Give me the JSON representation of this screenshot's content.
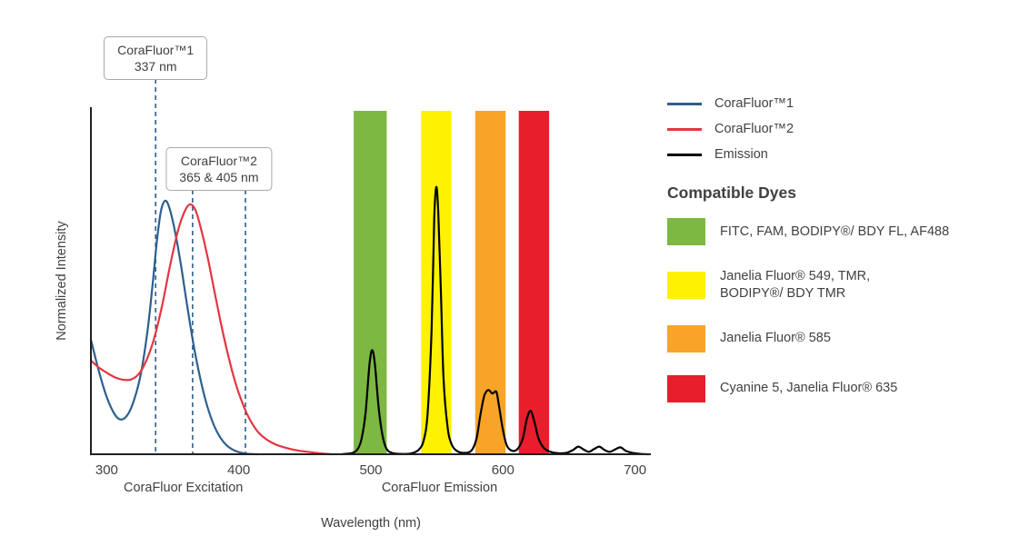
{
  "colors": {
    "corafluor1": "#2d5f8d",
    "corafluor2": "#e4363f",
    "emission": "#000000",
    "dashed_line": "#2d5f8d",
    "axis": "#231f20",
    "text": "#414042",
    "green_band": "#7cb842",
    "yellow_band": "#fef200",
    "orange_band": "#f7a428",
    "red_band": "#e81e2d"
  },
  "chart_data": {
    "type": "line",
    "title": "",
    "xlabel": "Wavelength (nm)",
    "ylabel": "Normalized Intensity",
    "x_range": [
      288,
      712
    ],
    "y_range": [
      0,
      1
    ],
    "grid": false,
    "x_ticks": [
      300,
      400,
      500,
      600,
      700
    ],
    "section_labels": [
      {
        "text": "CoraFluor Excitation",
        "anchor_nm": 358
      },
      {
        "text": "CoraFluor Emission",
        "anchor_nm": 552
      }
    ],
    "dashed_markers_nm": [
      337,
      365,
      405
    ],
    "annotations": [
      {
        "line1": "CoraFluor™1",
        "line2": "337 nm",
        "at_nm": 337
      },
      {
        "line1": "CoraFluor™2",
        "line2": "365 & 405 nm",
        "at_nm": 385
      }
    ],
    "bands": [
      {
        "id": "green",
        "from_nm": 487,
        "to_nm": 512,
        "color": "#7cb842"
      },
      {
        "id": "yellow",
        "from_nm": 538,
        "to_nm": 561,
        "color": "#fef200"
      },
      {
        "id": "orange",
        "from_nm": 579,
        "to_nm": 602,
        "color": "#f7a428"
      },
      {
        "id": "red",
        "from_nm": 612,
        "to_nm": 635,
        "color": "#e81e2d"
      }
    ],
    "series": [
      {
        "name": "CoraFluor™1",
        "kind": "excitation",
        "color": "#2d5f8d",
        "points": [
          [
            288,
            0.33
          ],
          [
            294,
            0.24
          ],
          [
            300,
            0.165
          ],
          [
            306,
            0.115
          ],
          [
            311,
            0.1
          ],
          [
            316,
            0.115
          ],
          [
            321,
            0.16
          ],
          [
            326,
            0.235
          ],
          [
            331,
            0.36
          ],
          [
            335,
            0.5
          ],
          [
            338,
            0.615
          ],
          [
            341,
            0.7
          ],
          [
            344,
            0.73
          ],
          [
            347,
            0.715
          ],
          [
            351,
            0.655
          ],
          [
            356,
            0.55
          ],
          [
            361,
            0.425
          ],
          [
            366,
            0.31
          ],
          [
            371,
            0.215
          ],
          [
            376,
            0.14
          ],
          [
            381,
            0.085
          ],
          [
            386,
            0.048
          ],
          [
            391,
            0.025
          ],
          [
            396,
            0.012
          ],
          [
            401,
            0.005
          ],
          [
            407,
            0.001
          ],
          [
            414,
            0
          ]
        ]
      },
      {
        "name": "CoraFluor™2",
        "kind": "excitation",
        "color": "#e4363f",
        "points": [
          [
            288,
            0.27
          ],
          [
            294,
            0.25
          ],
          [
            300,
            0.235
          ],
          [
            306,
            0.222
          ],
          [
            312,
            0.215
          ],
          [
            318,
            0.215
          ],
          [
            324,
            0.23
          ],
          [
            330,
            0.27
          ],
          [
            336,
            0.335
          ],
          [
            342,
            0.43
          ],
          [
            348,
            0.545
          ],
          [
            354,
            0.645
          ],
          [
            359,
            0.7
          ],
          [
            363,
            0.72
          ],
          [
            367,
            0.705
          ],
          [
            371,
            0.655
          ],
          [
            376,
            0.575
          ],
          [
            381,
            0.48
          ],
          [
            386,
            0.385
          ],
          [
            391,
            0.3
          ],
          [
            396,
            0.225
          ],
          [
            401,
            0.165
          ],
          [
            406,
            0.118
          ],
          [
            411,
            0.083
          ],
          [
            416,
            0.058
          ],
          [
            422,
            0.04
          ],
          [
            428,
            0.028
          ],
          [
            435,
            0.019
          ],
          [
            443,
            0.012
          ],
          [
            452,
            0.007
          ],
          [
            461,
            0.003
          ],
          [
            470,
            0
          ]
        ]
      },
      {
        "name": "Emission",
        "kind": "emission",
        "color": "#000000",
        "points": [
          [
            478,
            0
          ],
          [
            486,
            0.004
          ],
          [
            490,
            0.015
          ],
          [
            493,
            0.045
          ],
          [
            496,
            0.12
          ],
          [
            499,
            0.26
          ],
          [
            501,
            0.3
          ],
          [
            503,
            0.26
          ],
          [
            506,
            0.13
          ],
          [
            509,
            0.05
          ],
          [
            512,
            0.015
          ],
          [
            516,
            0.004
          ],
          [
            522,
            0.001
          ],
          [
            530,
            0.002
          ],
          [
            536,
            0.012
          ],
          [
            540,
            0.04
          ],
          [
            543,
            0.12
          ],
          [
            546,
            0.36
          ],
          [
            548,
            0.68
          ],
          [
            549.5,
            0.77
          ],
          [
            551,
            0.7
          ],
          [
            553,
            0.47
          ],
          [
            555,
            0.22
          ],
          [
            558,
            0.08
          ],
          [
            561,
            0.03
          ],
          [
            565,
            0.01
          ],
          [
            570,
            0.004
          ],
          [
            576,
            0.01
          ],
          [
            580,
            0.045
          ],
          [
            583,
            0.115
          ],
          [
            586,
            0.17
          ],
          [
            589,
            0.185
          ],
          [
            592,
            0.175
          ],
          [
            595,
            0.18
          ],
          [
            597,
            0.14
          ],
          [
            600,
            0.07
          ],
          [
            603,
            0.025
          ],
          [
            607,
            0.01
          ],
          [
            611,
            0.015
          ],
          [
            615,
            0.045
          ],
          [
            618,
            0.1
          ],
          [
            621,
            0.125
          ],
          [
            624,
            0.09
          ],
          [
            627,
            0.045
          ],
          [
            631,
            0.018
          ],
          [
            636,
            0.007
          ],
          [
            642,
            0.003
          ],
          [
            648,
            0.004
          ],
          [
            653,
            0.012
          ],
          [
            657,
            0.022
          ],
          [
            661,
            0.014
          ],
          [
            665,
            0.007
          ],
          [
            669,
            0.015
          ],
          [
            673,
            0.022
          ],
          [
            677,
            0.012
          ],
          [
            681,
            0.007
          ],
          [
            685,
            0.014
          ],
          [
            689,
            0.02
          ],
          [
            693,
            0.01
          ],
          [
            698,
            0.004
          ],
          [
            704,
            0.001
          ],
          [
            710,
            0
          ]
        ]
      }
    ]
  },
  "legend": {
    "items": [
      {
        "label": "CoraFluor™1",
        "color": "#2d5f8d"
      },
      {
        "label": "CoraFluor™2",
        "color": "#e4363f"
      },
      {
        "label": "Emission",
        "color": "#000000"
      }
    ],
    "dyes_title": "Compatible Dyes",
    "dyes": [
      {
        "color": "#7cb842",
        "label": "FITC, FAM, BODIPY®/ BDY FL, AF488"
      },
      {
        "color": "#fef200",
        "label": "Janelia Fluor® 549, TMR,\nBODIPY®/ BDY TMR"
      },
      {
        "color": "#f7a428",
        "label": "Janelia Fluor® 585"
      },
      {
        "color": "#e81e2d",
        "label": "Cyanine 5, Janelia Fluor® 635"
      }
    ]
  }
}
